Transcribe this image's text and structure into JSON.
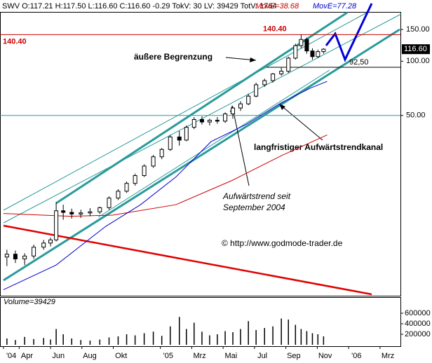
{
  "chart_data": {
    "type": "candlestick",
    "header": "SWV O:117.21 H:117.50 L:116.60 C:116.60 -0.29 TokV: 30 LV: 39429 TotV: 1764",
    "log_scale": true,
    "ylim": [
      5,
      186
    ],
    "yticks": [
      {
        "value": 50,
        "label": "50.00"
      },
      {
        "value": 100,
        "label": "100.00"
      },
      {
        "value": 150,
        "label": "150.00"
      }
    ],
    "xlim": [
      -0.22,
      25.3
    ],
    "xticks": [
      {
        "value": 0,
        "label": "'04"
      },
      {
        "value": 1,
        "label": "Apr"
      },
      {
        "value": 3,
        "label": "Jun"
      },
      {
        "value": 5,
        "label": "Aug"
      },
      {
        "value": 7,
        "label": "Okt"
      },
      {
        "value": 10,
        "label": "'05"
      },
      {
        "value": 12,
        "label": "Mrz"
      },
      {
        "value": 14,
        "label": "Mai"
      },
      {
        "value": 16,
        "label": "Jul"
      },
      {
        "value": 18,
        "label": "Sep"
      },
      {
        "value": 20,
        "label": "Nov"
      },
      {
        "value": 22,
        "label": "'06"
      },
      {
        "value": 24,
        "label": "Mrz"
      }
    ],
    "grid_line": 50,
    "grid_color": "#2a9a9a",
    "x": [
      0.22,
      0.76,
      1.35,
      1.93,
      2.56,
      3.0,
      3.36,
      3.81,
      4.35,
      4.93,
      5.52,
      6.14,
      6.73,
      7.31,
      7.85,
      8.39,
      8.97,
      9.55,
      10.09,
      10.63,
      11.21,
      11.66,
      12.15,
      12.65,
      13.14,
      13.63,
      14.13,
      14.62,
      15.11,
      15.61,
      16.1,
      16.64,
      17.17,
      17.71,
      18.16,
      18.61,
      18.97,
      19.33,
      19.69,
      20.04,
      20.4
    ],
    "open": [
      8.2,
      8.5,
      8.0,
      8.3,
      9.3,
      9.8,
      10.2,
      14.8,
      14.5,
      14.2,
      14.4,
      14.6,
      15.4,
      17.4,
      19.0,
      21.0,
      23.2,
      26.2,
      29.5,
      32.4,
      38.0,
      36.5,
      43,
      47.5,
      46,
      47,
      46.5,
      51,
      55,
      58,
      64,
      74,
      78,
      85,
      88,
      104,
      122,
      132,
      114,
      106,
      113
    ],
    "high": [
      9,
      8.9,
      8.6,
      9.6,
      10.2,
      10.5,
      16.5,
      16,
      15.2,
      15.0,
      15.3,
      15.6,
      17.8,
      19.5,
      21.5,
      23.8,
      26.8,
      30.2,
      33,
      39,
      41,
      44,
      49,
      49.5,
      48,
      49,
      52,
      56,
      60,
      66,
      76,
      80,
      86,
      92,
      106,
      125,
      140.4,
      135,
      118,
      116,
      118
    ],
    "low": [
      7.3,
      7.6,
      7.4,
      8.0,
      9.0,
      9.4,
      10.0,
      13.2,
      13.4,
      13.5,
      13.8,
      14.2,
      15.0,
      17.0,
      18.6,
      20.4,
      22.8,
      25.6,
      28.6,
      31.8,
      34,
      36,
      42,
      44.5,
      44,
      45,
      45.5,
      48,
      53,
      57,
      63,
      72,
      76,
      83,
      86,
      102,
      118,
      110,
      102,
      104,
      110
    ],
    "close": [
      8.5,
      8.0,
      8.3,
      9.3,
      9.8,
      10.2,
      14.8,
      14.5,
      14.2,
      14.4,
      14.6,
      15.4,
      17.4,
      19.0,
      21.0,
      23.2,
      26.2,
      29.5,
      32.4,
      38.0,
      36.5,
      43,
      47.5,
      46.0,
      47,
      46.5,
      51,
      55,
      58,
      64,
      74,
      78,
      85,
      88,
      104,
      122,
      132,
      114,
      106,
      113,
      116.6
    ],
    "overlays": [
      {
        "name": "MovE=38.68",
        "color": "#cc0000",
        "x": [
          0,
          4.26,
          6.95,
          10.99,
          14.57,
          17.71,
          20.63
        ],
        "values": [
          14.3,
          13.8,
          14,
          16,
          21.8,
          29.9,
          39
        ]
      },
      {
        "name": "MovE=77.28",
        "color": "#0000cc",
        "x": [
          0,
          3.36,
          6.5,
          8.74,
          10.99,
          13.23,
          15.47,
          17.71,
          19.51,
          20.63
        ],
        "values": [
          5.4,
          7.4,
          12.1,
          16,
          22.8,
          35.8,
          44.6,
          58.8,
          70.6,
          77.3
        ]
      }
    ],
    "levels": [
      {
        "value": 140.4,
        "label": "140.40",
        "color": "#cc0000"
      },
      {
        "value": 92.5,
        "label": "92,50",
        "color": "#000000"
      }
    ],
    "last_price": {
      "value": 116.6,
      "label": "116.60"
    },
    "annotations": [
      "äußere Begrenzung",
      "langfristiger Aufwärtstrendkanal",
      "Aufwärtstrend seit",
      "September 2004"
    ],
    "copyright": "© http://www.godmode-trader.de",
    "volume": {
      "label": "Volume=39429",
      "color": "#000000",
      "ylim": [
        0,
        893000
      ],
      "yticks": [
        200000,
        400000,
        600000
      ],
      "values": [
        120000,
        90000,
        150000,
        110000,
        130000,
        100000,
        300000,
        200000,
        120000,
        90000,
        80000,
        100000,
        140000,
        160000,
        200000,
        180000,
        220000,
        250000,
        170000,
        350000,
        530000,
        300000,
        420000,
        250000,
        180000,
        200000,
        260000,
        240000,
        300000,
        450000,
        280000,
        320000,
        350000,
        500000,
        480000,
        380000,
        300000,
        260000,
        220000,
        200000,
        160000
      ]
    }
  }
}
